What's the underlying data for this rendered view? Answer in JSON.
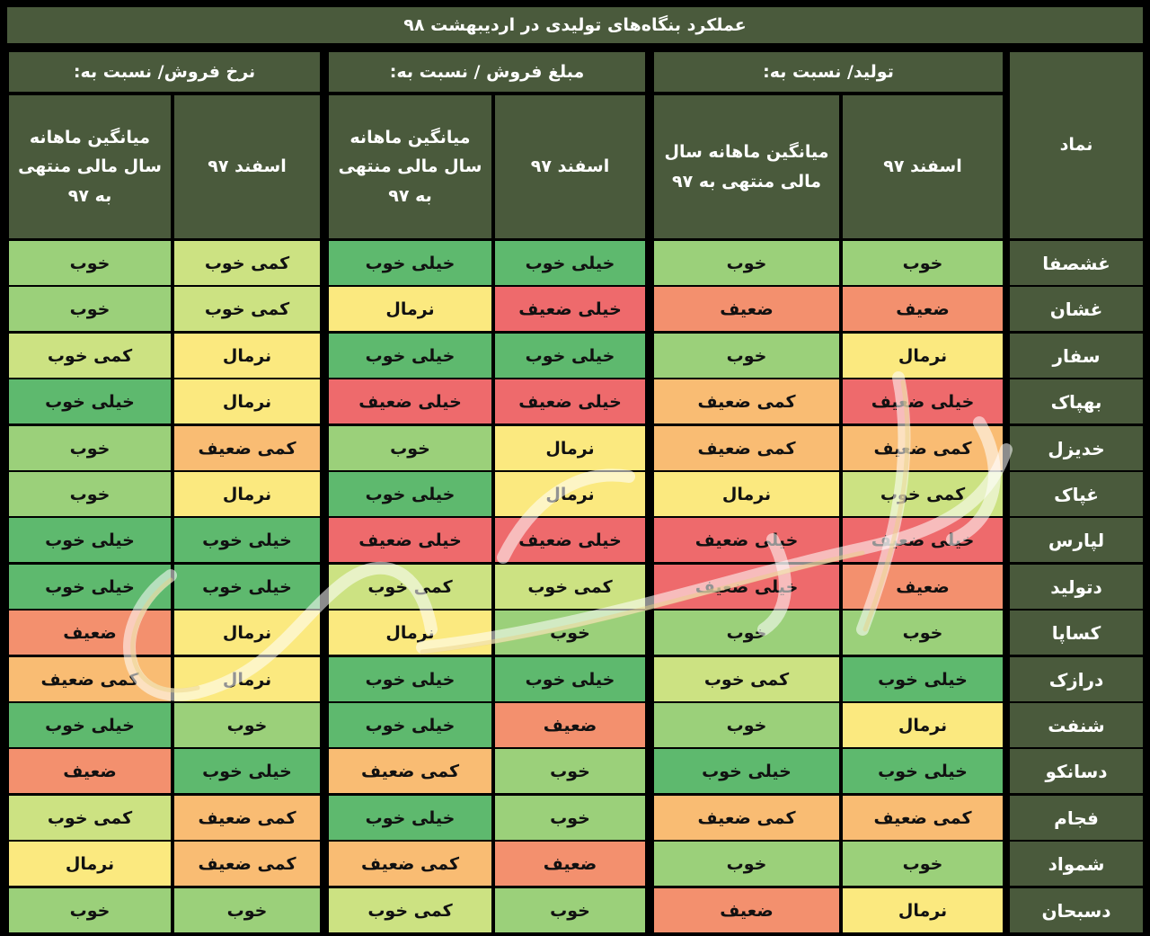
{
  "title": "عملکرد بنگاه‌های تولیدی در اردیبهشت ۹۸",
  "groups": [
    {
      "label": "تولید/ نسبت به:"
    },
    {
      "label": "مبلغ فروش / نسبت به:"
    },
    {
      "label": "نرخ فروش/ نسبت به:"
    }
  ],
  "symbol_header": "نماد",
  "subheaders": {
    "col1": "اسفند ۹۷",
    "col2_line1": "میانگین ماهانه سال",
    "col2_line2": "مالی منتهی به ۹۷",
    "col3": "اسفند ۹۷",
    "col4_line1": "میانگین ماهانه",
    "col4_line2": "سال مالی منتهی",
    "col4_line3": "به ۹۷",
    "col5": "اسفند ۹۷",
    "col6_line1": "میانگین ماهانه",
    "col6_line2": "سال مالی منتهی",
    "col6_line3": "به ۹۷"
  },
  "rating_colors": {
    "خیلی خوب": "#5eb96e",
    "خوب": "#9bd07a",
    "کمی خوب": "#cce282",
    "نرمال": "#fbe97f",
    "کمی ضعیف": "#f9bc73",
    "ضعیف": "#f3906e",
    "خیلی ضعیف": "#ee6a6c"
  },
  "rows": [
    {
      "symbol": "غشصفا",
      "values": [
        "خوب",
        "خوب",
        "خیلی خوب",
        "خیلی خوب",
        "کمی خوب",
        "خوب"
      ]
    },
    {
      "symbol": "غشان",
      "values": [
        "ضعیف",
        "ضعیف",
        "خیلی ضعیف",
        "نرمال",
        "کمی خوب",
        "خوب"
      ]
    },
    {
      "symbol": "سفار",
      "values": [
        "نرمال",
        "خوب",
        "خیلی خوب",
        "خیلی خوب",
        "نرمال",
        "کمی خوب"
      ]
    },
    {
      "symbol": "بهپاک",
      "values": [
        "خیلی ضعیف",
        "کمی ضعیف",
        "خیلی ضعیف",
        "خیلی ضعیف",
        "نرمال",
        "خیلی خوب"
      ]
    },
    {
      "symbol": "خدیزل",
      "values": [
        "کمی ضعیف",
        "کمی ضعیف",
        "نرمال",
        "خوب",
        "کمی ضعیف",
        "خوب"
      ]
    },
    {
      "symbol": "غپاک",
      "values": [
        "کمی خوب",
        "نرمال",
        "نرمال",
        "خیلی خوب",
        "نرمال",
        "خوب"
      ]
    },
    {
      "symbol": "لپارس",
      "values": [
        "خیلی ضعیف",
        "خیلی ضعیف",
        "خیلی ضعیف",
        "خیلی ضعیف",
        "خیلی خوب",
        "خیلی خوب"
      ]
    },
    {
      "symbol": "دتولید",
      "values": [
        "ضعیف",
        "خیلی ضعیف",
        "کمی خوب",
        "کمی خوب",
        "خیلی خوب",
        "خیلی خوب"
      ]
    },
    {
      "symbol": "کساپا",
      "values": [
        "خوب",
        "خوب",
        "خوب",
        "نرمال",
        "نرمال",
        "ضعیف"
      ]
    },
    {
      "symbol": "درازک",
      "values": [
        "خیلی خوب",
        "کمی خوب",
        "خیلی خوب",
        "خیلی خوب",
        "نرمال",
        "کمی ضعیف"
      ]
    },
    {
      "symbol": "شنفت",
      "values": [
        "نرمال",
        "خوب",
        "ضعیف",
        "خیلی خوب",
        "خوب",
        "خیلی خوب"
      ]
    },
    {
      "symbol": "دسانکو",
      "values": [
        "خیلی خوب",
        "خیلی خوب",
        "خوب",
        "کمی ضعیف",
        "خیلی خوب",
        "ضعیف"
      ]
    },
    {
      "symbol": "فجام",
      "values": [
        "کمی ضعیف",
        "کمی ضعیف",
        "خوب",
        "خیلی خوب",
        "کمی ضعیف",
        "کمی خوب"
      ]
    },
    {
      "symbol": "شمواد",
      "values": [
        "خوب",
        "خوب",
        "ضعیف",
        "کمی ضعیف",
        "کمی ضعیف",
        "نرمال"
      ]
    },
    {
      "symbol": "دسبحان",
      "values": [
        "نرمال",
        "ضعیف",
        "خوب",
        "کمی خوب",
        "خوب",
        "خوب"
      ]
    }
  ]
}
